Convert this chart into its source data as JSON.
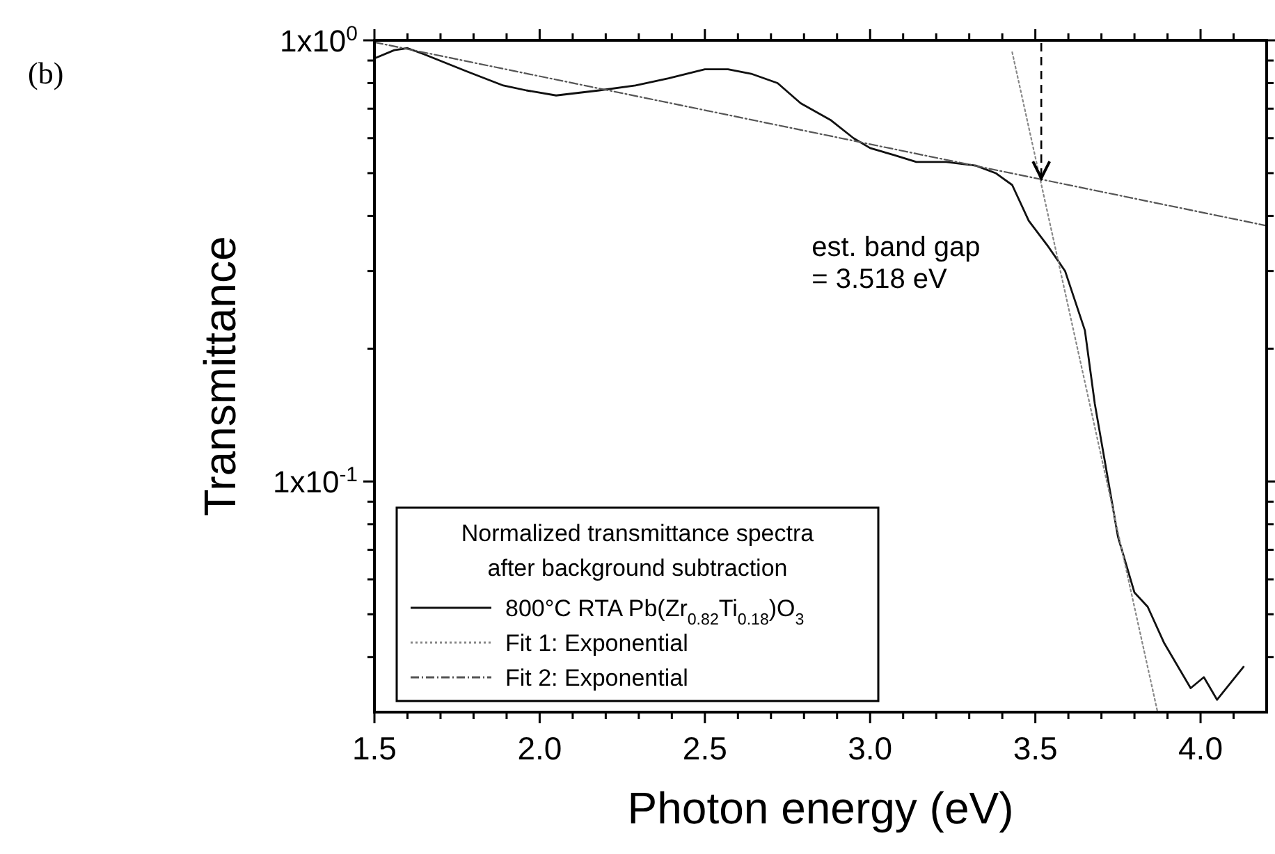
{
  "chart_data": {
    "type": "line",
    "title": "(b)",
    "xlabel": "Photon energy (eV)",
    "ylabel": "Transmittance",
    "legend_title": "Normalized transmittance spectra after background subtraction",
    "log": "y",
    "legend": "bottom left",
    "grid": false,
    "xlim": [
      1.5,
      4.2
    ],
    "ylim": [
      0.03,
      1
    ],
    "xticks": [
      1.5,
      {
        "value": 1.6,
        "label": null
      },
      {
        "value": 1.7,
        "label": null
      },
      {
        "value": 1.8,
        "label": null
      },
      {
        "value": 1.9,
        "label": null
      },
      "2.0",
      {
        "value": 2.1,
        "label": null
      },
      {
        "value": 2.2,
        "label": null
      },
      {
        "value": 2.3,
        "label": null
      },
      {
        "value": 2.4,
        "label": null
      },
      2.5,
      {
        "value": 2.6,
        "label": null
      },
      {
        "value": 2.7,
        "label": null
      },
      {
        "value": 2.8,
        "label": null
      },
      {
        "value": 2.9,
        "label": null
      },
      {
        "value": 3,
        "label": "3.0"
      },
      {
        "value": 3.1,
        "label": null
      },
      {
        "value": 3.2,
        "label": null
      },
      {
        "value": 3.3,
        "label": null
      },
      {
        "value": 3.4,
        "label": null
      },
      3.5,
      {
        "value": 3.6,
        "label": null
      },
      {
        "value": 3.7,
        "label": null
      },
      {
        "value": 3.8,
        "label": null
      },
      {
        "value": 3.9,
        "label": null
      },
      {
        "value": 4,
        "label": "4.0"
      },
      {
        "value": 4.1,
        "label": null
      }
    ],
    "yticks": [
      {
        "value": 0.04,
        "label": null
      },
      {
        "value": 0.05,
        "label": null
      },
      {
        "value": 0.06,
        "label": null
      },
      {
        "value": 0.07,
        "label": null
      },
      {
        "value": 0.08,
        "label": null
      },
      {
        "value": 0.09,
        "label": null
      },
      {
        "value": 0.1,
        "label": "1x10$^{-1}$"
      },
      {
        "value": 0.2,
        "label": null
      },
      {
        "value": 0.3,
        "label": null
      },
      {
        "value": 0.4,
        "label": null
      },
      {
        "value": 0.5,
        "label": null
      },
      {
        "value": 0.6,
        "label": null
      },
      {
        "value": 0.7,
        "label": null
      },
      {
        "value": 0.8,
        "label": null
      },
      {
        "value": 0.9,
        "label": null
      },
      {
        "value": 1,
        "label": "1x10$^{0}$"
      }
    ],
    "series": [
      {
        "name": "800°C RTA Pb(Zr$_{0.82}$Ti$_{0.18}$)O$_{3}$",
        "color": "#111111",
        "line_style": "solid",
        "x": [
          1.5,
          1.56,
          1.6,
          1.65,
          1.78,
          1.89,
          1.96,
          2.05,
          2.18,
          2.29,
          2.39,
          2.5,
          2.57,
          2.64,
          2.72,
          2.79,
          2.88,
          2.95,
          3.0,
          3.07,
          3.14,
          3.23,
          3.32,
          3.38,
          3.43,
          3.48,
          3.54,
          3.59,
          3.65,
          3.68,
          3.75,
          3.8,
          3.84,
          3.89,
          3.97,
          4.01,
          4.05,
          4.13
        ],
        "values": [
          0.91,
          0.95,
          0.96,
          0.93,
          0.85,
          0.79,
          0.77,
          0.75,
          0.77,
          0.79,
          0.82,
          0.86,
          0.86,
          0.84,
          0.8,
          0.72,
          0.66,
          0.6,
          0.57,
          0.55,
          0.53,
          0.53,
          0.52,
          0.5,
          0.47,
          0.39,
          0.34,
          0.3,
          0.22,
          0.15,
          0.075,
          0.056,
          0.052,
          0.043,
          0.034,
          0.036,
          0.032,
          0.038
        ]
      },
      {
        "name": "Fit 1: Exponential",
        "color": "#888888",
        "line_style": "dotted",
        "x": [
          3.43,
          3.87
        ],
        "values": [
          0.94,
          0.03
        ]
      },
      {
        "name": "Fit 2: Exponential",
        "color": "#555555",
        "line_style": "dashed",
        "x": [
          1.5,
          4.2
        ],
        "values": [
          0.99,
          0.38
        ]
      }
    ],
    "annotations": [
      {
        "text": "est. band gap\n= 3.518 eV",
        "x": 3.518,
        "y": 0.48
      }
    ]
  }
}
